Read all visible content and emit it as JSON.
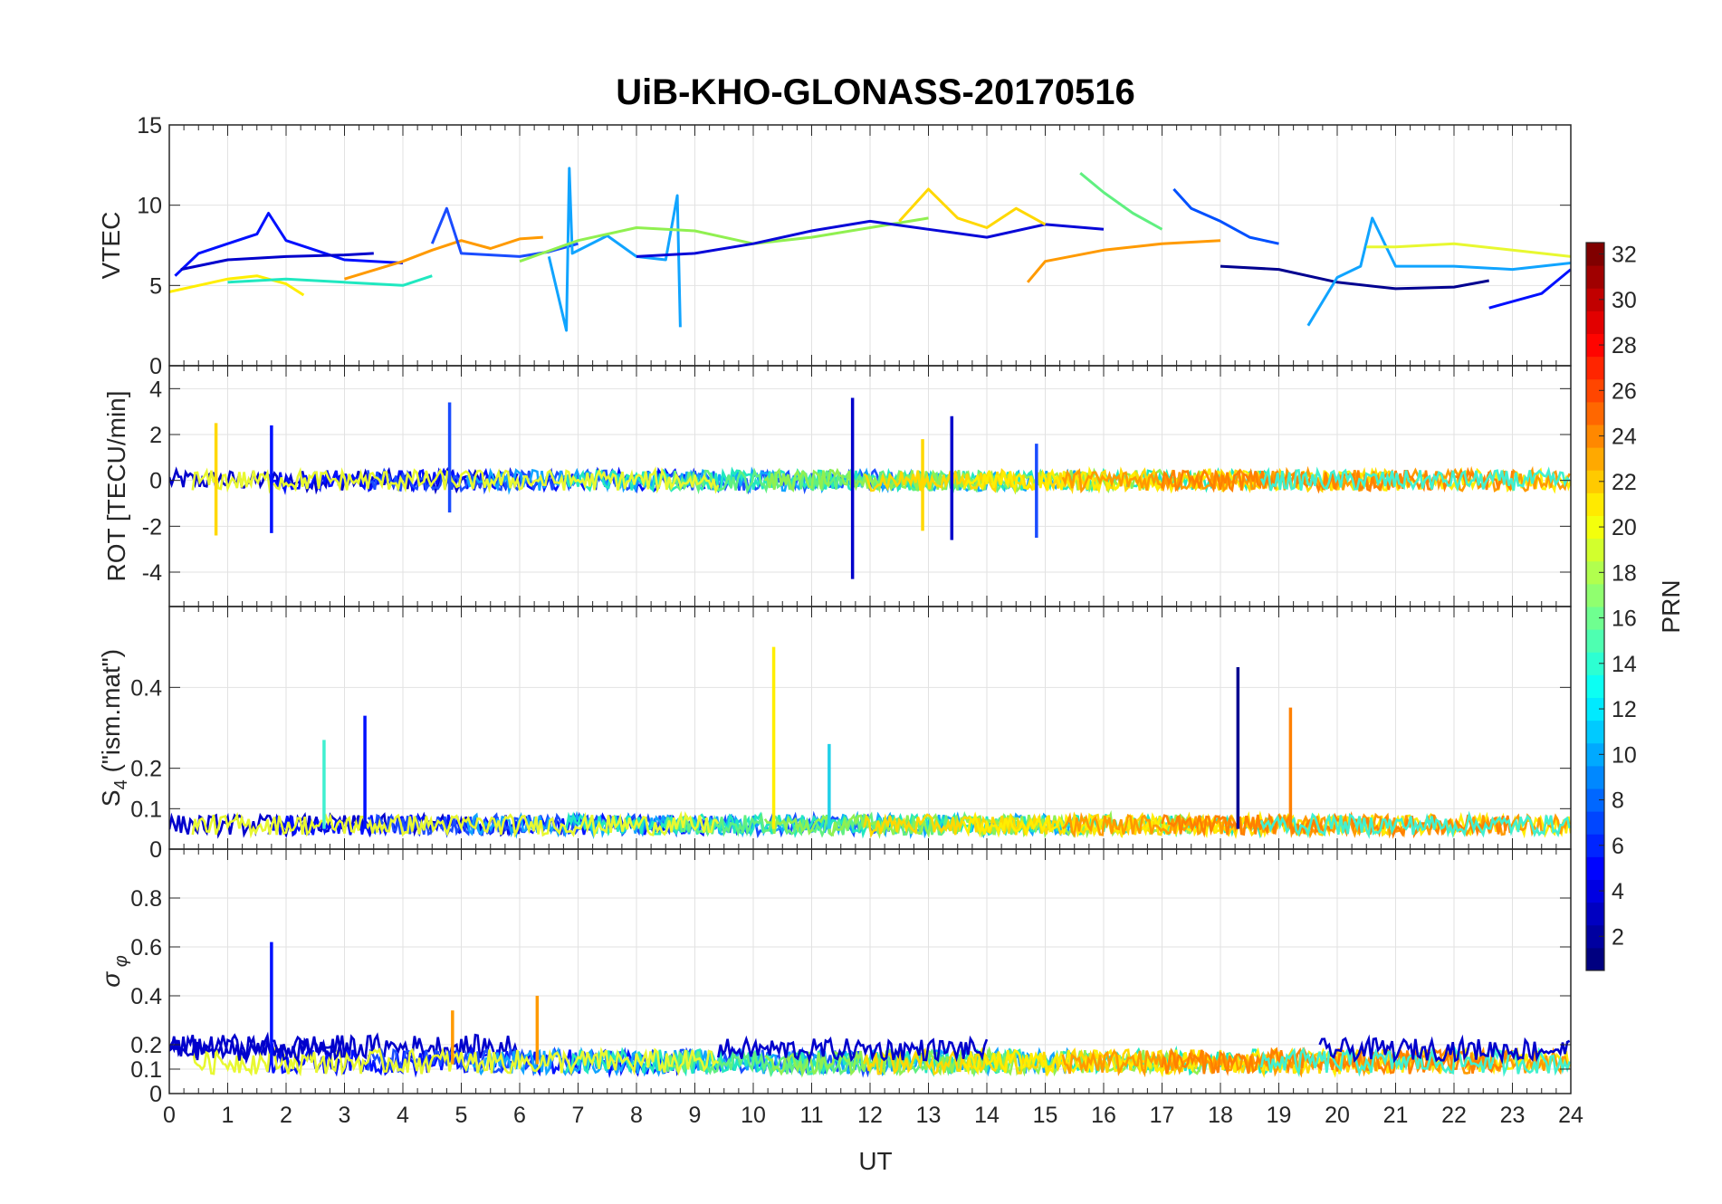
{
  "figure": {
    "title": "UiB-KHO-GLONASS-20170516",
    "xlabel": "UT",
    "colorbar_label": "PRN"
  },
  "chart_data": [
    {
      "type": "line",
      "name": "vtec-panel",
      "ylabel": "VTEC",
      "xlim": [
        0,
        24
      ],
      "ylim": [
        0,
        15
      ],
      "yticks": [
        0,
        5,
        10,
        15
      ],
      "xticks": [
        0,
        1,
        2,
        3,
        4,
        5,
        6,
        7,
        8,
        9,
        10,
        11,
        12,
        13,
        14,
        15,
        16,
        17,
        18,
        19,
        20,
        21,
        22,
        23,
        24
      ],
      "grid": true,
      "series": [
        {
          "prn": 3,
          "color": "#0010ff",
          "x": [
            0.1,
            0.5,
            1,
            1.5,
            1.7,
            2,
            2.5,
            3,
            3.5,
            4
          ],
          "y": [
            5.6,
            7,
            7.6,
            8.2,
            9.5,
            7.8,
            7.2,
            6.6,
            6.5,
            6.4
          ]
        },
        {
          "prn": 2,
          "color": "#0000cc",
          "x": [
            0.2,
            1,
            2,
            3,
            3.5
          ],
          "y": [
            6,
            6.6,
            6.8,
            6.9,
            7
          ]
        },
        {
          "prn": 20,
          "color": "#ffee00",
          "x": [
            0,
            0.5,
            1,
            1.5,
            2,
            2.3
          ],
          "y": [
            4.6,
            5,
            5.4,
            5.6,
            5.1,
            4.4
          ]
        },
        {
          "prn": 13,
          "color": "#20e8c0",
          "x": [
            1,
            2,
            3,
            4,
            4.5
          ],
          "y": [
            5.2,
            5.4,
            5.2,
            5,
            5.6
          ]
        },
        {
          "prn": 23,
          "color": "#ff9a00",
          "x": [
            3,
            4,
            4.5,
            5,
            5.5,
            6,
            6.4
          ],
          "y": [
            5.4,
            6.5,
            7.2,
            7.8,
            7.3,
            7.9,
            8
          ]
        },
        {
          "prn": 5,
          "color": "#1a4cff",
          "x": [
            4.5,
            4.75,
            5,
            6,
            6.5,
            7
          ],
          "y": [
            7.6,
            9.8,
            7,
            6.8,
            7.1,
            7.6
          ]
        },
        {
          "prn": 9,
          "color": "#10a4ff",
          "x": [
            6.5,
            6.8,
            6.85,
            6.9,
            7.5,
            8,
            8.5,
            8.7,
            8.75
          ],
          "y": [
            6.8,
            2.2,
            12.3,
            7,
            8.1,
            6.8,
            6.6,
            10.6,
            2.4
          ]
        },
        {
          "prn": 16,
          "color": "#90f050",
          "x": [
            6,
            7,
            8,
            9,
            10,
            11,
            12,
            13
          ],
          "y": [
            6.5,
            7.8,
            8.6,
            8.4,
            7.6,
            8,
            8.6,
            9.2
          ]
        },
        {
          "prn": 2,
          "color": "#0808d8",
          "x": [
            8,
            9,
            10,
            11,
            12,
            13,
            14,
            15,
            16
          ],
          "y": [
            6.8,
            7,
            7.6,
            8.4,
            9,
            8.5,
            8,
            8.8,
            8.5
          ]
        },
        {
          "prn": 21,
          "color": "#ffd800",
          "x": [
            12.5,
            13,
            13.5,
            14,
            14.5,
            15
          ],
          "y": [
            9,
            11,
            9.2,
            8.6,
            9.8,
            8.8
          ]
        },
        {
          "prn": 23,
          "color": "#ff9a00",
          "x": [
            14.7,
            15,
            16,
            17,
            18
          ],
          "y": [
            5.2,
            6.5,
            7.2,
            7.6,
            7.8
          ]
        },
        {
          "prn": 15,
          "color": "#60f080",
          "x": [
            15.6,
            16,
            16.5,
            17
          ],
          "y": [
            12,
            10.8,
            9.5,
            8.5
          ]
        },
        {
          "prn": 8,
          "color": "#0050ff",
          "x": [
            17.2,
            17.5,
            18,
            18.5,
            19
          ],
          "y": [
            11,
            9.8,
            9,
            8,
            7.6
          ]
        },
        {
          "prn": 1,
          "color": "#000090",
          "x": [
            18,
            19,
            20,
            21,
            22,
            22.6
          ],
          "y": [
            6.2,
            6,
            5.2,
            4.8,
            4.9,
            5.3
          ]
        },
        {
          "prn": 10,
          "color": "#10a4ff",
          "x": [
            19.5,
            20,
            20.4,
            20.6,
            21,
            22,
            23,
            24
          ],
          "y": [
            2.5,
            5.5,
            6.2,
            9.2,
            6.2,
            6.2,
            6,
            6.4
          ]
        },
        {
          "prn": 18,
          "color": "#e8f830",
          "x": [
            20.5,
            21,
            22,
            23,
            24
          ],
          "y": [
            7.4,
            7.4,
            7.6,
            7.2,
            6.8
          ]
        },
        {
          "prn": 3,
          "color": "#0010ff",
          "x": [
            22.6,
            23,
            23.5,
            24
          ],
          "y": [
            3.6,
            4,
            4.5,
            6
          ]
        }
      ]
    },
    {
      "type": "line",
      "name": "rot-panel",
      "ylabel": "ROT [TECU/min]",
      "xlim": [
        0,
        24
      ],
      "ylim": [
        -5.5,
        5
      ],
      "yticks": [
        -4,
        -2,
        0,
        2,
        4
      ],
      "xticks": [
        0,
        1,
        2,
        3,
        4,
        5,
        6,
        7,
        8,
        9,
        10,
        11,
        12,
        13,
        14,
        15,
        16,
        17,
        18,
        19,
        20,
        21,
        22,
        23,
        24
      ],
      "grid": true,
      "spikes": [
        {
          "color": "#ffd800",
          "x": 0.8,
          "y": [
            -2.4,
            2.5
          ]
        },
        {
          "color": "#0010ff",
          "x": 1.75,
          "y": [
            -2.3,
            2.4
          ]
        },
        {
          "color": "#1a4cff",
          "x": 4.8,
          "y": [
            -1.4,
            3.4
          ]
        },
        {
          "color": "#0000cc",
          "x": 11.7,
          "y": [
            -4.3,
            3.6
          ]
        },
        {
          "color": "#0000cc",
          "x": 13.4,
          "y": [
            -2.6,
            2.8
          ]
        },
        {
          "color": "#ffd800",
          "x": 12.9,
          "y": [
            -2.2,
            1.8
          ]
        },
        {
          "color": "#1a4cff",
          "x": 14.85,
          "y": [
            -2.5,
            1.6
          ]
        }
      ]
    },
    {
      "type": "line",
      "name": "s4-panel",
      "ylabel": "S4 (\"ism.mat\")",
      "xlim": [
        0,
        24
      ],
      "ylim": [
        0,
        0.6
      ],
      "yticks": [
        0,
        0.1,
        0.2,
        0.4
      ],
      "xticks": [
        0,
        1,
        2,
        3,
        4,
        5,
        6,
        7,
        8,
        9,
        10,
        11,
        12,
        13,
        14,
        15,
        16,
        17,
        18,
        19,
        20,
        21,
        22,
        23,
        24
      ],
      "grid": true,
      "spikes": [
        {
          "color": "#40f0d0",
          "x": 2.65,
          "y": [
            0.05,
            0.27
          ]
        },
        {
          "color": "#0010ff",
          "x": 3.35,
          "y": [
            0.05,
            0.33
          ]
        },
        {
          "color": "#ffee00",
          "x": 10.35,
          "y": [
            0.05,
            0.5
          ]
        },
        {
          "color": "#20d0e8",
          "x": 11.3,
          "y": [
            0.05,
            0.26
          ]
        },
        {
          "color": "#000090",
          "x": 18.3,
          "y": [
            0.05,
            0.45
          ]
        },
        {
          "color": "#ff8000",
          "x": 19.2,
          "y": [
            0.05,
            0.35
          ]
        }
      ]
    },
    {
      "type": "line",
      "name": "sigma-phi-panel",
      "ylabel": "σ φ",
      "xlim": [
        0,
        24
      ],
      "ylim": [
        0,
        1
      ],
      "yticks": [
        0,
        0.1,
        0.2,
        0.4,
        0.6,
        0.8
      ],
      "xticks": [
        0,
        1,
        2,
        3,
        4,
        5,
        6,
        7,
        8,
        9,
        10,
        11,
        12,
        13,
        14,
        15,
        16,
        17,
        18,
        19,
        20,
        21,
        22,
        23,
        24
      ],
      "grid": true,
      "spikes": [
        {
          "color": "#0010ff",
          "x": 1.75,
          "y": [
            0.12,
            0.62
          ]
        },
        {
          "color": "#ff9a00",
          "x": 6.3,
          "y": [
            0.12,
            0.4
          ]
        },
        {
          "color": "#ff9a00",
          "x": 4.85,
          "y": [
            0.12,
            0.34
          ]
        }
      ]
    }
  ],
  "colorbar": {
    "label": "PRN",
    "min": 1,
    "max": 32,
    "ticks": [
      2,
      4,
      6,
      8,
      10,
      12,
      14,
      16,
      18,
      20,
      22,
      24,
      26,
      28,
      30,
      32
    ]
  }
}
